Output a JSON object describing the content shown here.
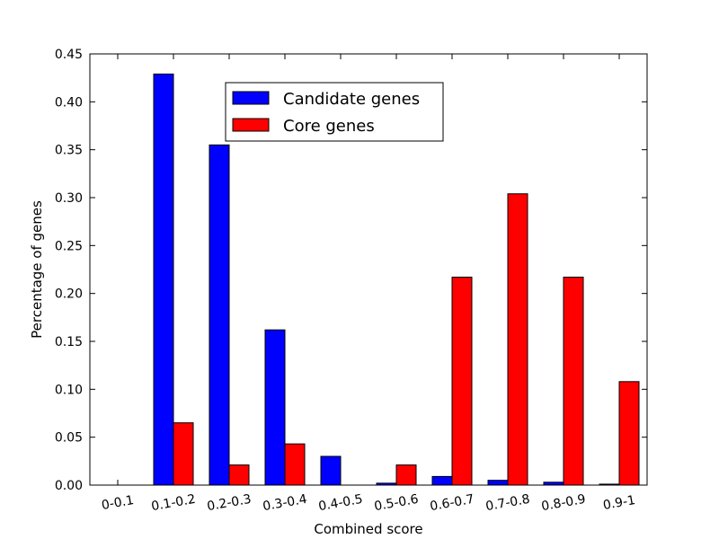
{
  "chart_data": {
    "type": "bar",
    "xlabel": "Combined score",
    "ylabel": "Percentage of genes",
    "ylim": [
      0,
      0.45
    ],
    "yticks": [
      "0.00",
      "0.05",
      "0.10",
      "0.15",
      "0.20",
      "0.25",
      "0.30",
      "0.35",
      "0.40",
      "0.45"
    ],
    "categories": [
      "0-0.1",
      "0.1-0.2",
      "0.2-0.3",
      "0.3-0.4",
      "0.4-0.5",
      "0.5-0.6",
      "0.6-0.7",
      "0.7-0.8",
      "0.8-0.9",
      "0.9-1"
    ],
    "series": [
      {
        "name": "Candidate genes",
        "color": "#0000ff",
        "values": [
          0.0,
          0.429,
          0.355,
          0.162,
          0.03,
          0.002,
          0.009,
          0.005,
          0.003,
          0.001
        ]
      },
      {
        "name": "Core genes",
        "color": "#ff0000",
        "values": [
          0.0,
          0.065,
          0.021,
          0.043,
          0.0,
          0.021,
          0.217,
          0.304,
          0.217,
          0.108
        ]
      }
    ],
    "legend_position": "upper-center",
    "grid": false
  }
}
